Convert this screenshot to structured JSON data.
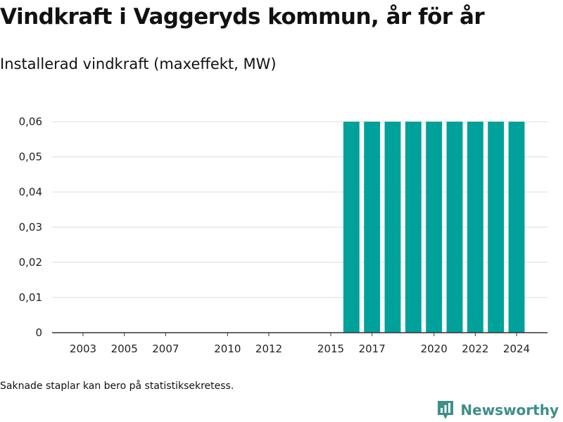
{
  "header": {
    "title": "Vindkraft i Vaggeryds kommun, år för år",
    "subtitle": "Installerad vindkraft (maxeffekt, MW)"
  },
  "footer": {
    "note": "Saknade staplar kan bero på statistiksekretess.",
    "brand": "Newsworthy"
  },
  "colors": {
    "bar": "#00a19a",
    "grid": "#dddddd",
    "axis": "#333333",
    "brand": "#3d8f8c"
  },
  "chart_data": {
    "type": "bar",
    "title": "Vindkraft i Vaggeryds kommun, år för år",
    "subtitle": "Installerad vindkraft (maxeffekt, MW)",
    "xlabel": "",
    "ylabel": "",
    "ylim": [
      0,
      0.06
    ],
    "xlim": [
      2001.5,
      2025.5
    ],
    "grid": true,
    "yticks": [
      0,
      0.01,
      0.02,
      0.03,
      0.04,
      0.05,
      0.06
    ],
    "ytick_labels": [
      "0",
      "0,01",
      "0,02",
      "0,03",
      "0,04",
      "0,05",
      "0,06"
    ],
    "xticks": [
      2003,
      2005,
      2007,
      2010,
      2012,
      2015,
      2017,
      2020,
      2022,
      2024
    ],
    "xtick_labels": [
      "2003",
      "2005",
      "2007",
      "2010",
      "2012",
      "2015",
      "2017",
      "2020",
      "2022",
      "2024"
    ],
    "categories": [
      2016,
      2017,
      2018,
      2019,
      2020,
      2021,
      2022,
      2023,
      2024
    ],
    "values": [
      0.06,
      0.06,
      0.06,
      0.06,
      0.06,
      0.06,
      0.06,
      0.06,
      0.06
    ]
  }
}
